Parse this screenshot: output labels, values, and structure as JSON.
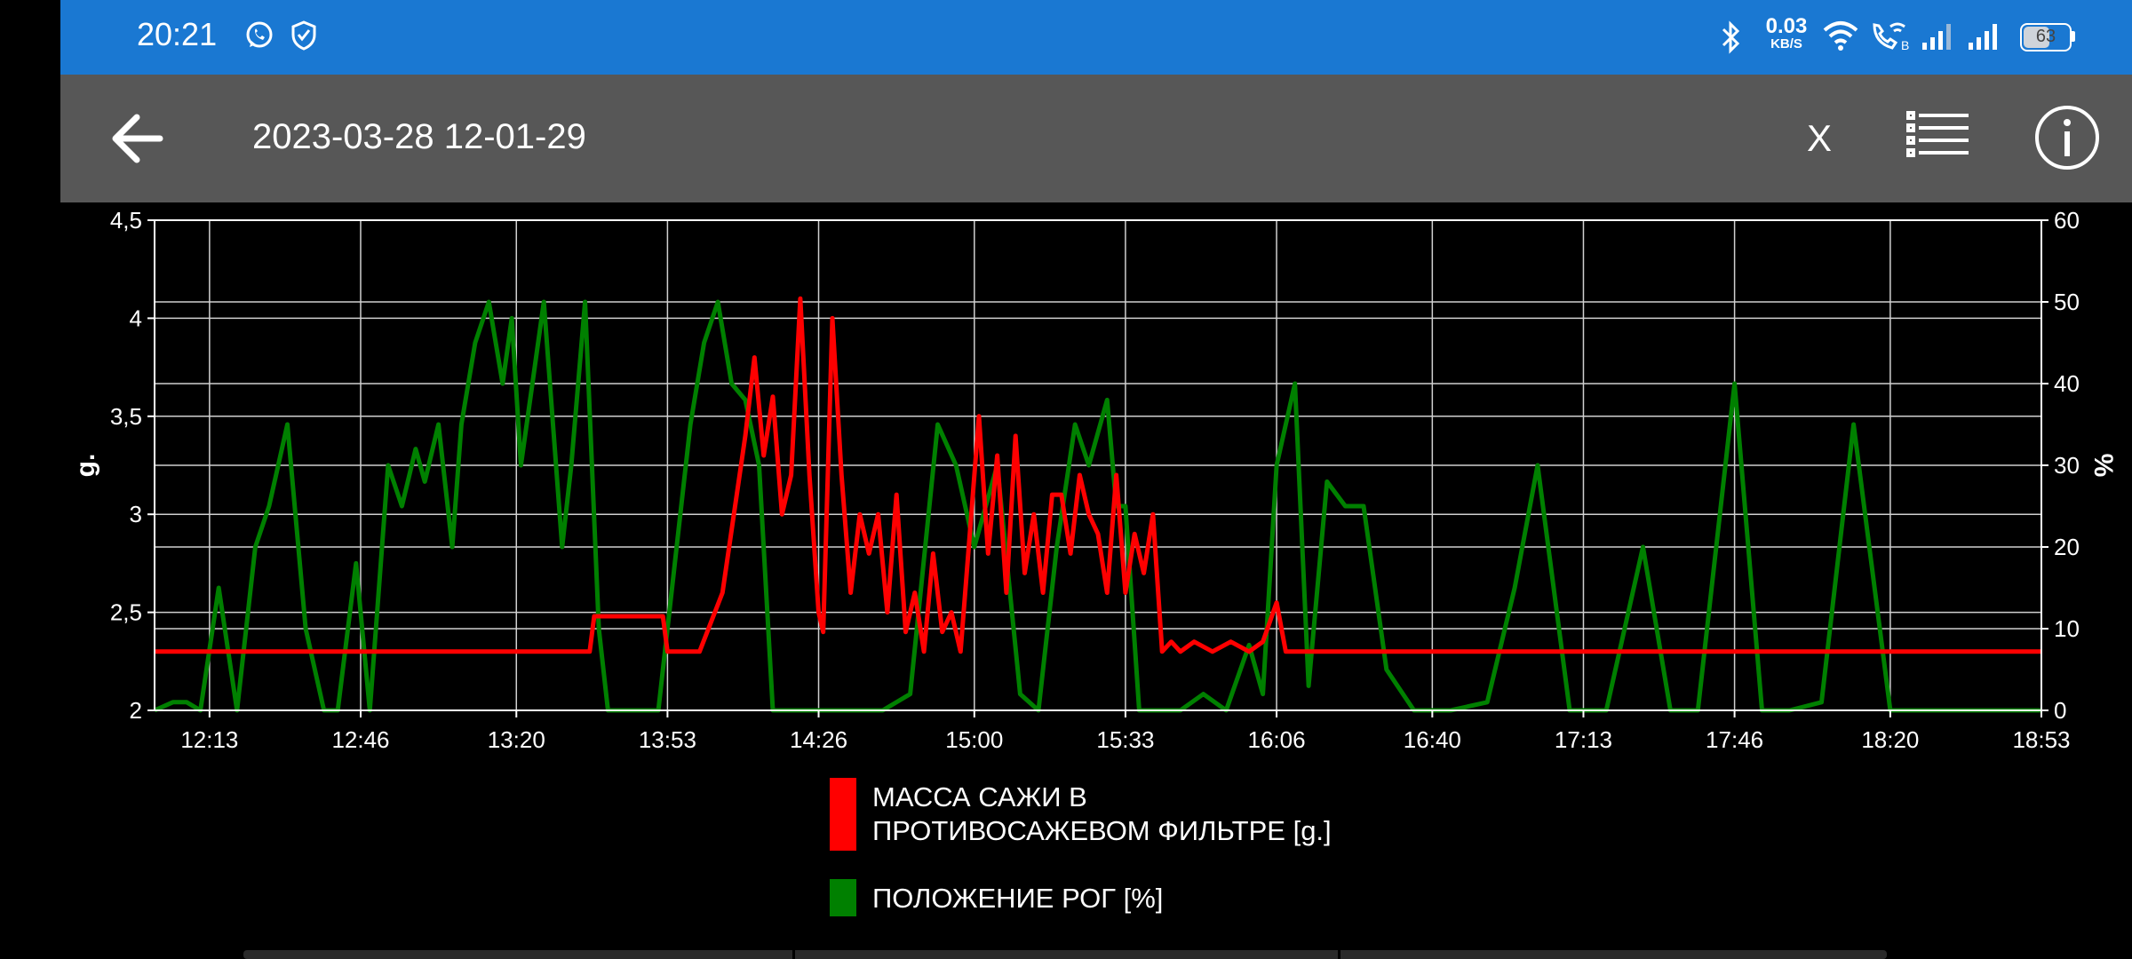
{
  "status_bar": {
    "time": "20:21",
    "net_speed_value": "0.03",
    "net_speed_unit": "KB/S",
    "battery": "63",
    "battery_level": 0.63,
    "icons": [
      "whatsapp-icon",
      "shield-check-icon",
      "bluetooth-icon",
      "wifi-icon",
      "wifi-call-icon",
      "signal-icon",
      "signal-icon",
      "battery-icon"
    ]
  },
  "app_bar": {
    "title": "2023-03-28 12-01-29",
    "x_label": "X",
    "icons": [
      "back-arrow-icon",
      "list-icon",
      "info-icon"
    ]
  },
  "chart_data": {
    "type": "line",
    "title": "",
    "xlabel": "",
    "ylabel_left": "g.",
    "ylabel_right": "%",
    "left_ylim": [
      2,
      4.5
    ],
    "right_ylim": [
      0,
      60
    ],
    "left_ticks": [
      "2",
      "2,5",
      "3",
      "3,5",
      "4",
      "4,5"
    ],
    "right_ticks": [
      "0",
      "10",
      "20",
      "30",
      "40",
      "50",
      "60"
    ],
    "x_ticks": [
      "12:13",
      "12:46",
      "13:20",
      "13:53",
      "14:26",
      "15:00",
      "15:33",
      "16:06",
      "16:40",
      "17:13",
      "17:46",
      "18:20",
      "18:53"
    ],
    "x_range": [
      "12:01",
      "18:53"
    ],
    "grid": true,
    "legend_position": "bottom-center",
    "series": [
      {
        "name": "МАССА САЖИ В ПРОТИВОСАЖЕВОМ ФИЛЬТРЕ [g.]",
        "color": "#ff0000",
        "axis": "left",
        "x": [
          "12:01",
          "13:36",
          "13:37",
          "13:52",
          "13:53",
          "14:00",
          "14:05",
          "14:10",
          "14:12",
          "14:14",
          "14:16",
          "14:18",
          "14:20",
          "14:22",
          "14:24",
          "14:26",
          "14:27",
          "14:29",
          "14:31",
          "14:33",
          "14:35",
          "14:37",
          "14:39",
          "14:41",
          "14:43",
          "14:45",
          "14:47",
          "14:49",
          "14:51",
          "14:53",
          "14:55",
          "14:57",
          "14:59",
          "15:01",
          "15:03",
          "15:05",
          "15:07",
          "15:09",
          "15:11",
          "15:13",
          "15:15",
          "15:17",
          "15:19",
          "15:21",
          "15:23",
          "15:25",
          "15:27",
          "15:29",
          "15:31",
          "15:33",
          "15:35",
          "15:37",
          "15:39",
          "15:41",
          "15:43",
          "15:45",
          "15:48",
          "15:52",
          "15:56",
          "16:00",
          "16:03",
          "16:06",
          "16:08",
          "16:11",
          "18:53"
        ],
        "y": [
          2.3,
          2.3,
          2.48,
          2.48,
          2.3,
          2.3,
          2.6,
          3.4,
          3.8,
          3.3,
          3.6,
          3.0,
          3.2,
          4.1,
          3.2,
          2.5,
          2.4,
          4.0,
          3.2,
          2.6,
          3.0,
          2.8,
          3.0,
          2.5,
          3.1,
          2.4,
          2.6,
          2.3,
          2.8,
          2.4,
          2.5,
          2.3,
          2.9,
          3.5,
          2.8,
          3.3,
          2.6,
          3.4,
          2.7,
          3.0,
          2.6,
          3.1,
          3.1,
          2.8,
          3.2,
          3.0,
          2.9,
          2.6,
          3.2,
          2.6,
          2.9,
          2.7,
          3.0,
          2.3,
          2.35,
          2.3,
          2.35,
          2.3,
          2.35,
          2.3,
          2.35,
          2.55,
          2.3,
          2.3,
          2.3
        ]
      },
      {
        "name": "ПОЛОЖЕНИЕ РОГ [%]",
        "color": "#008000",
        "axis": "right",
        "x": [
          "12:01",
          "12:05",
          "12:08",
          "12:11",
          "12:15",
          "12:19",
          "12:23",
          "12:26",
          "12:30",
          "12:34",
          "12:38",
          "12:41",
          "12:45",
          "12:48",
          "12:52",
          "12:55",
          "12:58",
          "13:00",
          "13:03",
          "13:06",
          "13:08",
          "13:11",
          "13:14",
          "13:17",
          "13:19",
          "13:21",
          "13:24",
          "13:26",
          "13:28",
          "13:30",
          "13:32",
          "13:35",
          "13:38",
          "13:40",
          "13:43",
          "13:47",
          "13:51",
          "13:55",
          "13:58",
          "14:01",
          "14:04",
          "14:07",
          "14:10",
          "14:13",
          "14:16",
          "14:19",
          "14:22",
          "14:25",
          "14:29",
          "14:33",
          "14:40",
          "14:46",
          "14:52",
          "14:56",
          "15:00",
          "15:05",
          "15:10",
          "15:14",
          "15:18",
          "15:22",
          "15:25",
          "15:29",
          "15:31",
          "15:33",
          "15:36",
          "15:40",
          "15:45",
          "15:50",
          "15:55",
          "16:00",
          "16:03",
          "16:06",
          "16:08",
          "16:10",
          "16:13",
          "16:17",
          "16:21",
          "16:25",
          "16:30",
          "16:36",
          "16:44",
          "16:52",
          "16:58",
          "17:03",
          "17:10",
          "17:18",
          "17:26",
          "17:32",
          "17:38",
          "17:46",
          "17:52",
          "17:58",
          "18:05",
          "18:12",
          "18:20",
          "18:30",
          "18:40",
          "18:53"
        ],
        "y": [
          0,
          1,
          1,
          0,
          15,
          0,
          20,
          25,
          35,
          10,
          0,
          0,
          18,
          0,
          30,
          25,
          32,
          28,
          35,
          20,
          35,
          45,
          50,
          40,
          48,
          30,
          42,
          50,
          35,
          20,
          30,
          50,
          10,
          0,
          0,
          0,
          0,
          20,
          35,
          45,
          50,
          40,
          38,
          30,
          0,
          0,
          0,
          0,
          0,
          0,
          0,
          2,
          35,
          30,
          20,
          30,
          2,
          0,
          20,
          35,
          30,
          38,
          25,
          25,
          0,
          0,
          0,
          2,
          0,
          8,
          2,
          30,
          35,
          40,
          3,
          28,
          25,
          25,
          5,
          0,
          0,
          1,
          15,
          30,
          0,
          0,
          20,
          0,
          0,
          40,
          0,
          0,
          1,
          35,
          0,
          0,
          0,
          0
        ]
      }
    ]
  }
}
